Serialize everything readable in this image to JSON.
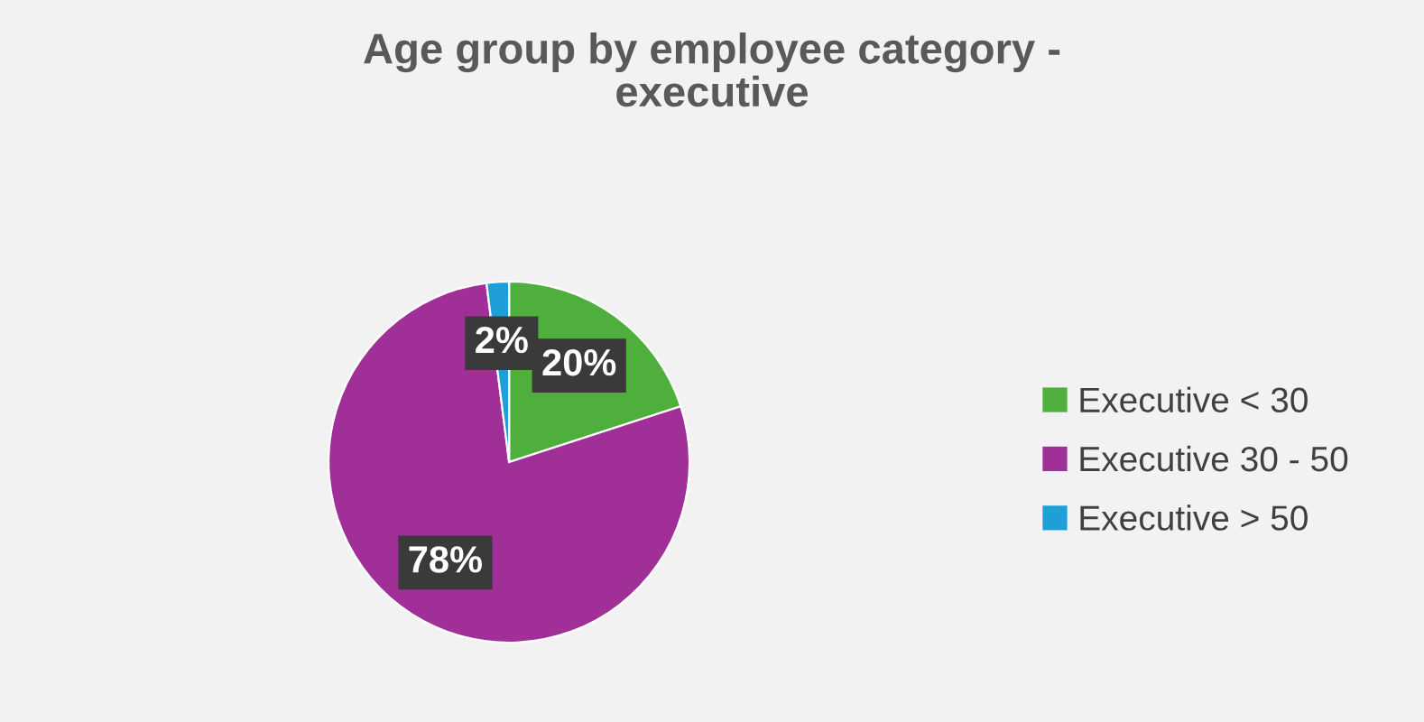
{
  "chart_data": {
    "type": "pie",
    "title": "Age group by employee category - executive",
    "categories": [
      "Executive < 30",
      "Executive 30 - 50",
      "Executive > 50"
    ],
    "values": [
      20,
      78,
      2
    ],
    "colors": [
      "#4eaf3c",
      "#a02f98",
      "#1f9fd8"
    ],
    "value_labels": [
      "20%",
      "78%",
      "2%"
    ],
    "legend": "right"
  }
}
